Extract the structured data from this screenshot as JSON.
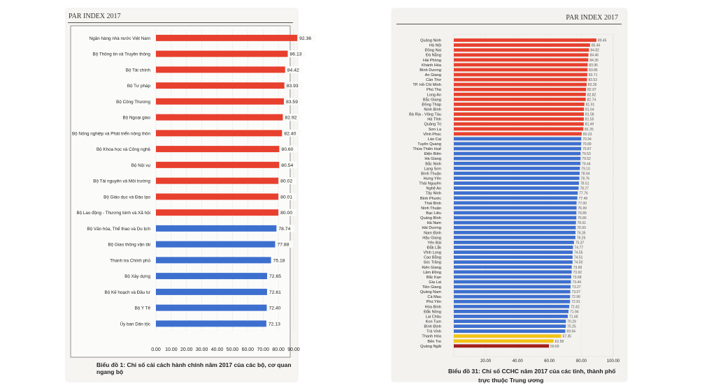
{
  "left_page": {
    "header": "PAR INDEX 2017",
    "caption": "Biểu đồ 1: Chỉ số cải cách hành chính năm 2017 của các bộ, cơ quan ngang bộ"
  },
  "right_page": {
    "header": "PAR INDEX 2017",
    "caption_line1": "Biểu đồ 31: Chỉ số CCHC năm 2017 của các tỉnh, thành phố",
    "caption_line2": "trực thuộc Trung ương"
  },
  "colors": {
    "red": "#e8402e",
    "blue": "#3d6fcf",
    "yellow": "#f2c318",
    "darkred": "#a3201c"
  },
  "chart_data": [
    {
      "type": "bar",
      "orientation": "horizontal",
      "title": "Biểu đồ 1: Chỉ số cải cách hành chính năm 2017 của các bộ, cơ quan ngang bộ",
      "categories": [
        "Ngân hàng nhà nước Việt Nam",
        "Bộ Thông tin và Truyền thông",
        "Bộ Tài chính",
        "Bộ Tư pháp",
        "Bộ Công Thương",
        "Bộ Ngoại giao",
        "Bộ Nông nghiệp và Phát triển nông thôn",
        "Bộ Khoa học và Công nghệ",
        "Bộ Nội vụ",
        "Bộ Tài nguyên và Môi trường",
        "Bộ Giáo dục và Đào tạo",
        "Bộ Lao động - Thương binh và Xã hội",
        "Bộ Văn hóa, Thể thao và Du lịch",
        "Bộ Giao thông vận tải",
        "Thanh tra Chính phủ",
        "Bộ Xây dựng",
        "Bộ Kế hoạch và Đầu tư",
        "Bộ Y Tế",
        "Ủy ban Dân tộc"
      ],
      "values": [
        92.36,
        86.13,
        84.42,
        83.93,
        83.59,
        82.92,
        82.4,
        80.6,
        80.54,
        80.02,
        80.01,
        80.0,
        78.74,
        77.88,
        75.18,
        72.65,
        72.61,
        72.4,
        72.13
      ],
      "value_labels": [
        "92.36",
        "86.13",
        "84.42",
        "83.93",
        "83.59",
        "82.92",
        "82.40",
        "80.60",
        "80.54",
        "80.02",
        "80.01",
        "80.00",
        "78.74",
        "77.88",
        "75.18",
        "72.65",
        "72.61",
        "72.40",
        "72.13"
      ],
      "bar_colors": [
        "red",
        "red",
        "red",
        "red",
        "red",
        "red",
        "red",
        "red",
        "red",
        "red",
        "red",
        "red",
        "blue",
        "blue",
        "blue",
        "blue",
        "blue",
        "blue",
        "blue"
      ],
      "xlim": [
        0,
        90
      ],
      "x_ticks": [
        "0.00",
        "10.00",
        "20.00",
        "30.00",
        "40.00",
        "50.00",
        "60.00",
        "70.00",
        "80.00",
        "90.00"
      ]
    },
    {
      "type": "bar",
      "orientation": "horizontal",
      "title": "Biểu đồ 31: Chỉ số CCHC năm 2017 của các tỉnh, thành phố trực thuộc Trung ương",
      "categories": [
        "Quảng Ninh",
        "Hà Nội",
        "Đồng Nai",
        "Đà Nẵng",
        "Hải Phòng",
        "Khánh Hòa",
        "Bình Dương",
        "An Giang",
        "Cần Thơ",
        "TP. Hồ Chí Minh",
        "Phú Thọ",
        "Long An",
        "Bắc Giang",
        "Đồng Tháp",
        "Ninh Bình",
        "Bà Rịa - Vũng Tàu",
        "Hà Tĩnh",
        "Quảng Trị",
        "Sơn La",
        "Vĩnh Phúc",
        "Lào Cai",
        "Tuyên Quang",
        "Thừa Thiên Huế",
        "Điện Biên",
        "Hà Giang",
        "Bắc Ninh",
        "Lạng Sơn",
        "Bình Thuận",
        "Hưng Yên",
        "Thái Nguyên",
        "Nghệ An",
        "Tây Ninh",
        "Bình Phước",
        "Thái Bình",
        "Ninh Thuận",
        "Bạc Liêu",
        "Quảng Bình",
        "Hà Nam",
        "Hải Dương",
        "Nam Định",
        "Hậu Giang",
        "Yên Bái",
        "Đắk Lắk",
        "Vĩnh Long",
        "Cao Bằng",
        "Sóc Trăng",
        "Kiên Giang",
        "Lâm Đồng",
        "Bắc Kạn",
        "Gia Lai",
        "Tiền Giang",
        "Quảng Nam",
        "Cà Mau",
        "Phú Yên",
        "Hòa Bình",
        "Đắk Nông",
        "Lai Châu",
        "Kon Tum",
        "Bình Định",
        "Trà Vinh",
        "Thanh Hóa",
        "Bến Tre",
        "Quảng Ngãi"
      ],
      "values": [
        89.45,
        85.46,
        84.82,
        84.46,
        84.35,
        83.95,
        83.85,
        83.71,
        83.53,
        83.3,
        82.97,
        82.82,
        82.74,
        81.91,
        81.64,
        81.58,
        81.55,
        81.49,
        81.25,
        80.23,
        79.94,
        79.89,
        79.87,
        79.53,
        79.52,
        79.44,
        79.1,
        78.94,
        78.76,
        78.51,
        78.27,
        77.76,
        77.49,
        77.0,
        76.99,
        76.89,
        76.86,
        76.61,
        76.5,
        76.35,
        76.26,
        75.37,
        74.77,
        74.55,
        74.51,
        74.5,
        73.99,
        73.92,
        73.68,
        73.44,
        73.27,
        73.07,
        72.96,
        72.91,
        72.42,
        71.94,
        71.48,
        70.29,
        70.25,
        69.94,
        67.35,
        62.58,
        59.69
      ],
      "value_labels": [
        "89.45",
        "85.46",
        "84.82",
        "84.46",
        "84.35",
        "83.95",
        "83.85",
        "83.71",
        "83.53",
        "83.30",
        "82.97",
        "82.82",
        "82.74",
        "81.91",
        "81.64",
        "81.58",
        "81.55",
        "81.49",
        "81.25",
        "80.23",
        "79.94",
        "79.89",
        "79.87",
        "79.53",
        "79.52",
        "79.44",
        "79.10",
        "78.94",
        "78.76",
        "78.51",
        "78.27",
        "77.76",
        "77.49",
        "77.00",
        "76.99",
        "76.89",
        "76.86",
        "76.61",
        "76.50",
        "76.35",
        "76.26",
        "75.37",
        "74.77",
        "74.55",
        "74.51",
        "74.50",
        "73.99",
        "73.92",
        "73.68",
        "73.44",
        "73.27",
        "73.07",
        "72.96",
        "72.91",
        "72.42",
        "71.94",
        "71.48",
        "70.29",
        "70.25",
        "69.94",
        "67.35",
        "62.58",
        "59.69"
      ],
      "xlim": [
        0,
        100
      ],
      "x_ticks": [
        "20.00",
        "40.00",
        "60.00",
        "80.00",
        "100.00"
      ],
      "color_groups": {
        "red_count": 20,
        "blue_count": 40,
        "yellow_count": 2,
        "darkred_count": 1
      }
    }
  ]
}
